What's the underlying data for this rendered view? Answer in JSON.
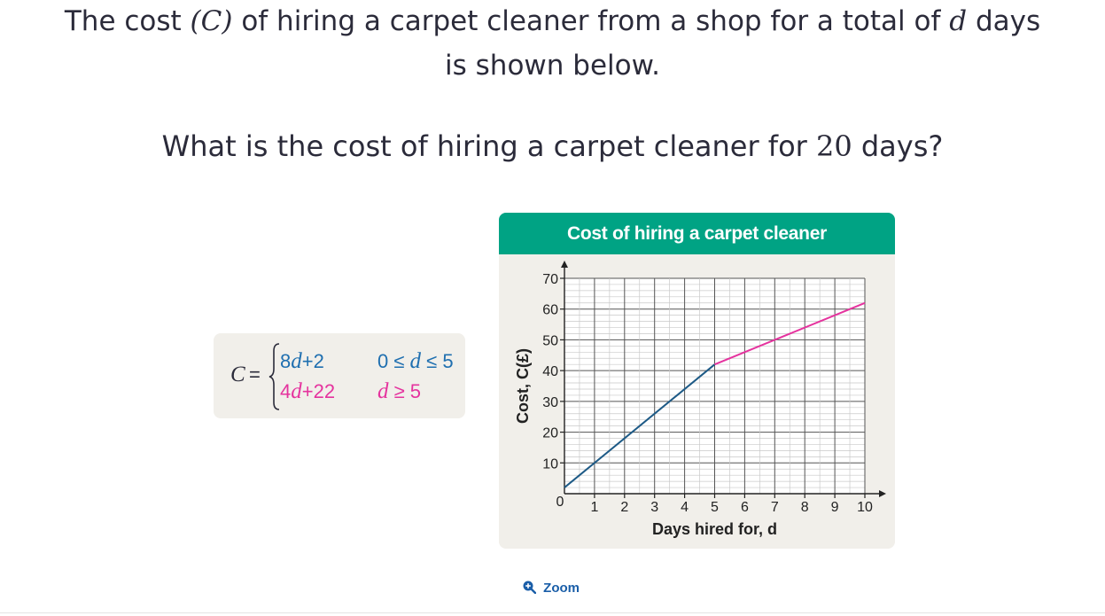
{
  "question": {
    "line1_pre": "The cost ",
    "line1_var_c": "(C)",
    "line1_mid": " of hiring a carpet cleaner from a shop for a total of ",
    "line1_var_d": "d",
    "line1_post": " days",
    "line2": "is shown below.",
    "line3_pre": "What is the cost of hiring a carpet cleaner for ",
    "line3_num": "20",
    "line3_post": " days?"
  },
  "formula": {
    "lhs": "C",
    "equals": "=",
    "piece1_expr_a": "8",
    "piece1_var": "d",
    "piece1_expr_b": "+2",
    "piece1_cond_a": "0 ≤ ",
    "piece1_cond_var": "d",
    "piece1_cond_b": " ≤ 5",
    "piece2_expr_a": "4",
    "piece2_var": "d",
    "piece2_expr_b": "+22",
    "piece2_cond_var": "d",
    "piece2_cond_b": " ≥ 5",
    "color_piece1": "#1f6fb0",
    "color_piece2": "#e5339e"
  },
  "chart_data": {
    "type": "line",
    "title": "Cost of hiring a carpet cleaner",
    "xlabel": "Days hired for, d",
    "ylabel": "Cost, C(£)",
    "xlim": [
      0,
      10
    ],
    "ylim": [
      0,
      70
    ],
    "x_ticks": [
      0,
      1,
      2,
      3,
      4,
      5,
      6,
      7,
      8,
      9,
      10
    ],
    "y_ticks": [
      0,
      10,
      20,
      30,
      40,
      50,
      60,
      70
    ],
    "grid": true,
    "series": [
      {
        "x": [
          0,
          5
        ],
        "y": [
          2,
          42
        ],
        "color": "#1d5a86"
      },
      {
        "x": [
          5,
          10
        ],
        "y": [
          42,
          62
        ],
        "color": "#e5339e"
      }
    ]
  },
  "zoom": {
    "label": "Zoom",
    "icon": "zoom-in-icon"
  }
}
